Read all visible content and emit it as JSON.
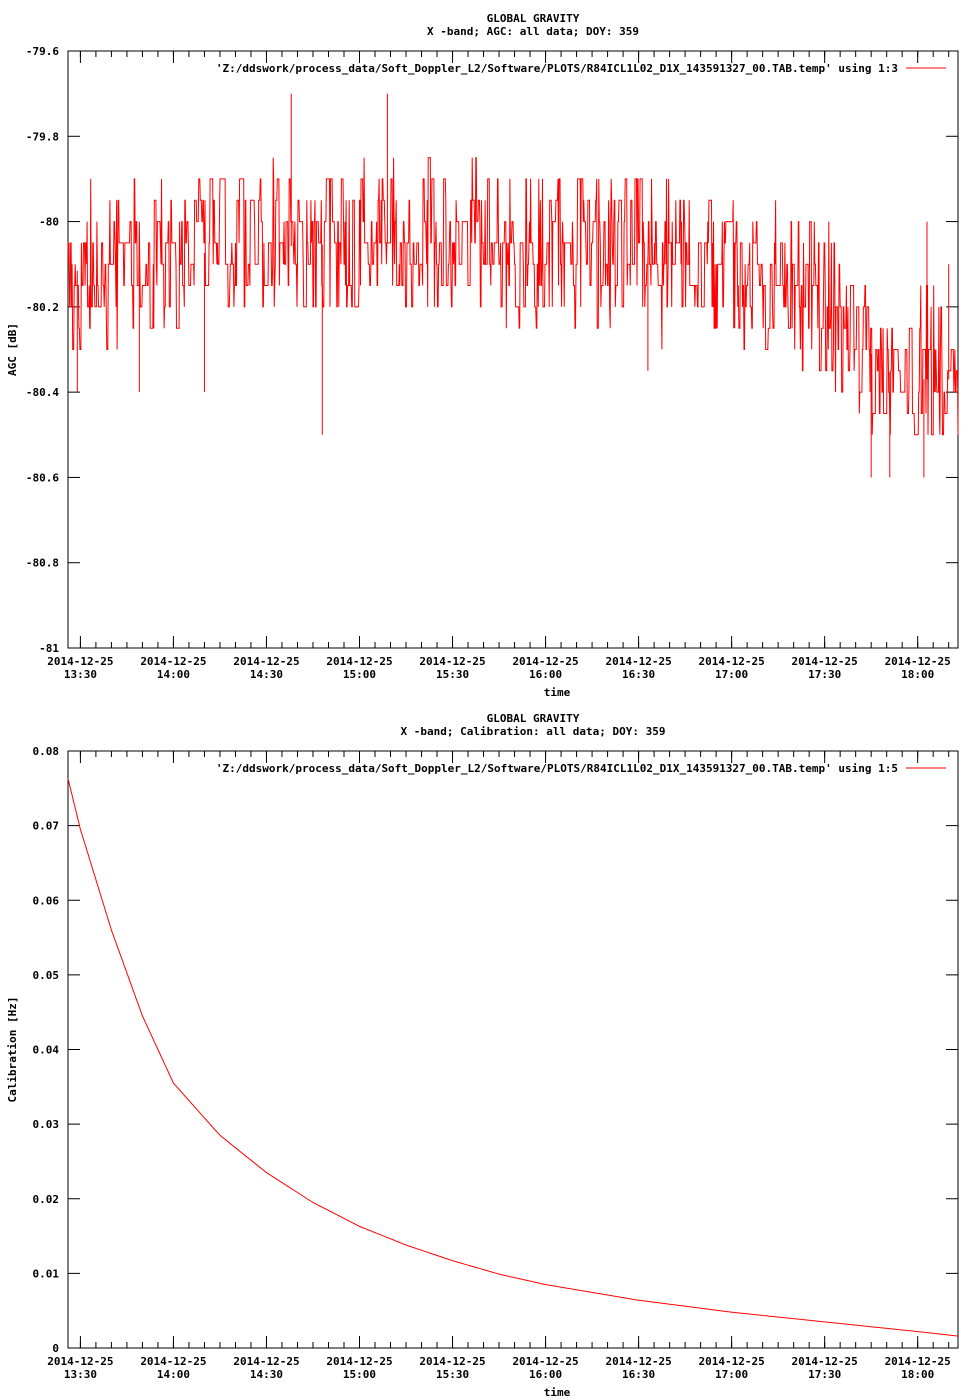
{
  "chart_data": [
    {
      "type": "line",
      "title": "GLOBAL GRAVITY",
      "subtitle": "X -band; AGC: all data; DOY: 359",
      "xlabel": "time",
      "ylabel": "AGC [dB]",
      "ylim": [
        -81,
        -79.6
      ],
      "xlim": [
        "2014-12-25 13:26",
        "2014-12-25 18:13"
      ],
      "x_tick_values": [
        "2014-12-25 13:30",
        "2014-12-25 14:00",
        "2014-12-25 14:30",
        "2014-12-25 15:00",
        "2014-12-25 15:30",
        "2014-12-25 16:00",
        "2014-12-25 16:30",
        "2014-12-25 17:00",
        "2014-12-25 17:30",
        "2014-12-25 18:00"
      ],
      "x_tick_labels": [
        [
          "2014-12-25",
          "13:30"
        ],
        [
          "2014-12-25",
          "14:00"
        ],
        [
          "2014-12-25",
          "14:30"
        ],
        [
          "2014-12-25",
          "15:00"
        ],
        [
          "2014-12-25",
          "15:30"
        ],
        [
          "2014-12-25",
          "16:00"
        ],
        [
          "2014-12-25",
          "16:30"
        ],
        [
          "2014-12-25",
          "17:00"
        ],
        [
          "2014-12-25",
          "17:30"
        ],
        [
          "2014-12-25",
          "18:00"
        ]
      ],
      "y_ticks": [
        -79.6,
        -79.8,
        -80,
        -80.2,
        -80.4,
        -80.6,
        -80.8,
        -81
      ],
      "y_tick_labels": [
        "-79.6",
        "-79.8",
        "-80",
        "-80.2",
        "-80.4",
        "-80.6",
        "-80.8",
        "-81"
      ],
      "grid": false,
      "legend": "top-right",
      "series": [
        {
          "name": "'Z:/ddswork/process_data/Soft_Doppler_L2/Software/PLOTS/R84ICL1L02_D1X_143591327_00.TAB.temp' using 1:3",
          "color": "#ff0000",
          "noise": true,
          "x": [
            "2014-12-25 13:26",
            "2014-12-25 13:40",
            "2014-12-25 14:00",
            "2014-12-25 14:30",
            "2014-12-25 15:00",
            "2014-12-25 15:30",
            "2014-12-25 16:00",
            "2014-12-25 16:30",
            "2014-12-25 17:00",
            "2014-12-25 17:15",
            "2014-12-25 17:30",
            "2014-12-25 17:40",
            "2014-12-25 17:50",
            "2014-12-25 18:00",
            "2014-12-25 18:13"
          ],
          "y_min": [
            -80.3,
            -80.3,
            -80.25,
            -80.2,
            -80.2,
            -80.2,
            -80.25,
            -80.3,
            -80.3,
            -80.3,
            -80.35,
            -80.45,
            -80.5,
            -80.5,
            -80.5
          ],
          "y_max": [
            -79.95,
            -79.9,
            -79.9,
            -79.85,
            -79.85,
            -79.85,
            -79.9,
            -79.9,
            -79.95,
            -79.95,
            -80.0,
            -80.1,
            -80.15,
            -80.15,
            -80.2
          ],
          "y_center": [
            -80.12,
            -80.1,
            -80.08,
            -80.06,
            -80.05,
            -80.05,
            -80.07,
            -80.08,
            -80.1,
            -80.12,
            -80.18,
            -80.27,
            -80.35,
            -80.37,
            -80.37
          ],
          "outliers": [
            {
              "x": "2014-12-25 13:29",
              "y": -80.4
            },
            {
              "x": "2014-12-25 13:49",
              "y": -80.4
            },
            {
              "x": "2014-12-25 14:10",
              "y": -80.4
            },
            {
              "x": "2014-12-25 14:38",
              "y": -79.7
            },
            {
              "x": "2014-12-25 14:48",
              "y": -80.5
            },
            {
              "x": "2014-12-25 15:09",
              "y": -79.7
            },
            {
              "x": "2014-12-25 16:33",
              "y": -80.35
            },
            {
              "x": "2014-12-25 17:45",
              "y": -80.6
            },
            {
              "x": "2014-12-25 17:51",
              "y": -80.6
            },
            {
              "x": "2014-12-25 18:02",
              "y": -80.6
            },
            {
              "x": "2014-12-25 18:03",
              "y": -80.0
            },
            {
              "x": "2014-12-25 18:10",
              "y": -80.1
            }
          ]
        }
      ]
    },
    {
      "type": "line",
      "title": "GLOBAL GRAVITY",
      "subtitle": "X -band; Calibration: all data; DOY: 359",
      "xlabel": "time",
      "ylabel": "Calibration [Hz]",
      "ylim": [
        0,
        0.08
      ],
      "xlim": [
        "2014-12-25 13:26",
        "2014-12-25 18:13"
      ],
      "x_tick_values": [
        "2014-12-25 13:30",
        "2014-12-25 14:00",
        "2014-12-25 14:30",
        "2014-12-25 15:00",
        "2014-12-25 15:30",
        "2014-12-25 16:00",
        "2014-12-25 16:30",
        "2014-12-25 17:00",
        "2014-12-25 17:30",
        "2014-12-25 18:00"
      ],
      "x_tick_labels": [
        [
          "2014-12-25",
          "13:30"
        ],
        [
          "2014-12-25",
          "14:00"
        ],
        [
          "2014-12-25",
          "14:30"
        ],
        [
          "2014-12-25",
          "15:00"
        ],
        [
          "2014-12-25",
          "15:30"
        ],
        [
          "2014-12-25",
          "16:00"
        ],
        [
          "2014-12-25",
          "16:30"
        ],
        [
          "2014-12-25",
          "17:00"
        ],
        [
          "2014-12-25",
          "17:30"
        ],
        [
          "2014-12-25",
          "18:00"
        ]
      ],
      "y_ticks": [
        0.08,
        0.07,
        0.06,
        0.05,
        0.04,
        0.03,
        0.02,
        0.01,
        0
      ],
      "y_tick_labels": [
        "0.08",
        "0.07",
        "0.06",
        "0.05",
        "0.04",
        "0.03",
        "0.02",
        "0.01",
        "0"
      ],
      "grid": false,
      "legend": "top-right",
      "series": [
        {
          "name": "'Z:/ddswork/process_data/Soft_Doppler_L2/Software/PLOTS/R84ICL1L02_D1X_143591327_00.TAB.temp' using 1:5",
          "color": "#ff0000",
          "x": [
            "2014-12-25 13:26",
            "2014-12-25 13:30",
            "2014-12-25 13:40",
            "2014-12-25 13:50",
            "2014-12-25 14:00",
            "2014-12-25 14:15",
            "2014-12-25 14:30",
            "2014-12-25 14:45",
            "2014-12-25 15:00",
            "2014-12-25 15:15",
            "2014-12-25 15:30",
            "2014-12-25 15:45",
            "2014-12-25 16:00",
            "2014-12-25 16:30",
            "2014-12-25 17:00",
            "2014-12-25 17:30",
            "2014-12-25 18:00",
            "2014-12-25 18:13"
          ],
          "y": [
            0.0763,
            0.0695,
            0.056,
            0.0445,
            0.0355,
            0.0285,
            0.0235,
            0.0195,
            0.0163,
            0.0138,
            0.0117,
            0.0099,
            0.0085,
            0.0064,
            0.0048,
            0.0035,
            0.0022,
            0.0016
          ]
        }
      ]
    }
  ]
}
